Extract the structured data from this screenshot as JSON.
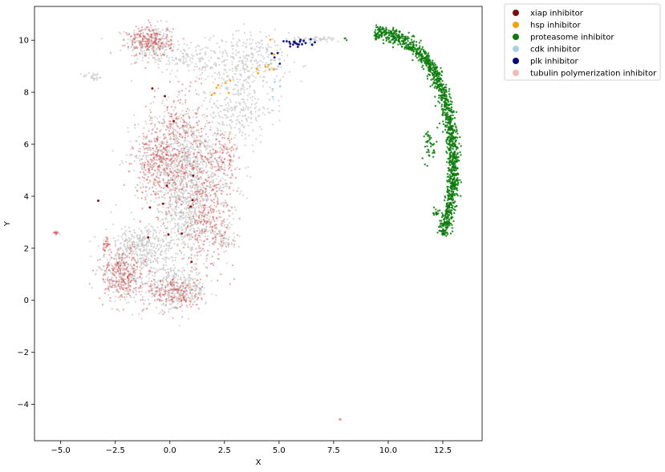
{
  "chart_data": {
    "type": "scatter",
    "title": "",
    "xlabel": "X",
    "ylabel": "Y",
    "xlim": [
      -6.2,
      14.3
    ],
    "ylim": [
      -5.4,
      11.3
    ],
    "xticks": [
      -5.0,
      -2.5,
      0.0,
      2.5,
      5.0,
      7.5,
      10.0,
      12.5
    ],
    "xtick_labels": [
      "−5.0",
      "−2.5",
      "0.0",
      "2.5",
      "5.0",
      "7.5",
      "10.0",
      "12.5"
    ],
    "yticks": [
      -4,
      -2,
      0,
      2,
      4,
      6,
      8,
      10
    ],
    "ytick_labels": [
      "−4",
      "−2",
      "0",
      "2",
      "4",
      "6",
      "8",
      "10"
    ],
    "grid": false,
    "legend_position": "outside-top-right",
    "background_points_color": "#c8c8c8",
    "series": [
      {
        "name": "xiap inhibitor",
        "color": "#7b0f0f"
      },
      {
        "name": "hsp inhibitor",
        "color": "#f5a20a"
      },
      {
        "name": "proteasome inhibitor",
        "color": "#0a7a0a"
      },
      {
        "name": "cdk inhibitor",
        "color": "#a9cfe6"
      },
      {
        "name": "plk inhibitor",
        "color": "#08087a"
      },
      {
        "name": "tubulin polymerization inhibitor",
        "color": "#f5b8b8"
      }
    ],
    "tubulin_scatter_color": "#d23a3a",
    "clusters": {
      "background": [
        {
          "cx": -0.9,
          "cy": 9.9,
          "sx": 0.55,
          "sy": 0.35,
          "n": 260
        },
        {
          "cx": 0.8,
          "cy": 9.3,
          "sx": 0.7,
          "sy": 0.3,
          "n": 120
        },
        {
          "cx": 3.5,
          "cy": 9.1,
          "sx": 0.9,
          "sy": 0.6,
          "n": 320
        },
        {
          "cx": 3.0,
          "cy": 7.3,
          "sx": 0.9,
          "sy": 0.6,
          "n": 220
        },
        {
          "cx": -3.5,
          "cy": 8.6,
          "sx": 0.25,
          "sy": 0.08,
          "n": 25
        },
        {
          "cx": 0.2,
          "cy": 5.5,
          "sx": 0.9,
          "sy": 1.0,
          "n": 650
        },
        {
          "cx": 1.5,
          "cy": 4.8,
          "sx": 0.8,
          "sy": 1.0,
          "n": 450
        },
        {
          "cx": 0.8,
          "cy": 3.0,
          "sx": 0.8,
          "sy": 0.8,
          "n": 380
        },
        {
          "cx": -1.5,
          "cy": 2.2,
          "sx": 0.7,
          "sy": 0.3,
          "n": 220
        },
        {
          "cx": -2.2,
          "cy": 1.0,
          "sx": 0.55,
          "sy": 0.5,
          "n": 260
        },
        {
          "cx": 0.3,
          "cy": 0.4,
          "sx": 0.7,
          "sy": 0.4,
          "n": 360
        },
        {
          "cx": -0.8,
          "cy": 1.6,
          "sx": 0.5,
          "sy": 0.5,
          "n": 160
        },
        {
          "cx": -5.2,
          "cy": 2.6,
          "sx": 0.08,
          "sy": 0.05,
          "n": 12
        },
        {
          "cx": 2.4,
          "cy": 2.4,
          "sx": 0.3,
          "sy": 0.3,
          "n": 60
        },
        {
          "cx": 7.0,
          "cy": 10.05,
          "sx": 0.6,
          "sy": 0.05,
          "n": 40
        }
      ],
      "tubulin": [
        {
          "cx": -0.9,
          "cy": 9.95,
          "sx": 0.5,
          "sy": 0.3,
          "n": 180
        },
        {
          "cx": -0.5,
          "cy": 5.3,
          "sx": 0.6,
          "sy": 0.7,
          "n": 260
        },
        {
          "cx": 1.0,
          "cy": 5.0,
          "sx": 0.9,
          "sy": 1.0,
          "n": 260
        },
        {
          "cx": 1.8,
          "cy": 3.0,
          "sx": 0.6,
          "sy": 0.8,
          "n": 200
        },
        {
          "cx": -2.2,
          "cy": 1.0,
          "sx": 0.5,
          "sy": 0.5,
          "n": 220
        },
        {
          "cx": 0.2,
          "cy": 0.3,
          "sx": 0.6,
          "sy": 0.35,
          "n": 170
        },
        {
          "cx": -2.9,
          "cy": 2.2,
          "sx": 0.1,
          "sy": 0.15,
          "n": 25
        },
        {
          "cx": 0.5,
          "cy": 7.2,
          "sx": 0.5,
          "sy": 0.8,
          "n": 80
        },
        {
          "cx": 2.6,
          "cy": 5.5,
          "sx": 0.3,
          "sy": 0.6,
          "n": 70
        },
        {
          "cx": -5.2,
          "cy": 2.6,
          "sx": 0.06,
          "sy": 0.04,
          "n": 8
        },
        {
          "cx": 7.8,
          "cy": -4.6,
          "sx": 0.03,
          "sy": 0.03,
          "n": 3
        }
      ],
      "proteasome_arc": {
        "points": [
          [
            9.4,
            10.35
          ],
          [
            10.5,
            10.1
          ],
          [
            11.4,
            9.6
          ],
          [
            12.1,
            8.8
          ],
          [
            12.6,
            7.8
          ],
          [
            12.9,
            6.5
          ],
          [
            13.0,
            5.2
          ],
          [
            12.9,
            4.0
          ],
          [
            12.7,
            3.2
          ],
          [
            12.5,
            2.5
          ]
        ],
        "width": 0.28,
        "n": 1300
      },
      "proteasome_extra": [
        {
          "cx": 11.9,
          "cy": 6.0,
          "sx": 0.15,
          "sy": 0.3,
          "n": 40
        },
        {
          "cx": 12.2,
          "cy": 3.4,
          "sx": 0.1,
          "sy": 0.1,
          "n": 15
        },
        {
          "cx": 8.0,
          "cy": 10.05,
          "sx": 0.1,
          "sy": 0.03,
          "n": 3
        }
      ],
      "plk": [
        {
          "cx": 5.9,
          "cy": 9.9,
          "sx": 0.4,
          "sy": 0.08,
          "n": 22
        },
        {
          "cx": 4.8,
          "cy": 9.3,
          "sx": 0.2,
          "sy": 0.2,
          "n": 4
        }
      ],
      "hsp": [
        {
          "cx": 4.6,
          "cy": 8.9,
          "sx": 0.3,
          "sy": 0.4,
          "n": 8
        },
        {
          "cx": 2.3,
          "cy": 8.1,
          "sx": 0.4,
          "sy": 0.3,
          "n": 7
        }
      ],
      "cdk": [
        {
          "cx": 4.8,
          "cy": 8.6,
          "sx": 0.3,
          "sy": 0.5,
          "n": 10
        },
        {
          "cx": 6.2,
          "cy": 9.95,
          "sx": 0.3,
          "sy": 0.05,
          "n": 8
        }
      ],
      "xiap": [
        {
          "cx": -0.3,
          "cy": 4.5,
          "sx": 1.0,
          "sy": 2.0,
          "n": 14
        }
      ]
    }
  }
}
